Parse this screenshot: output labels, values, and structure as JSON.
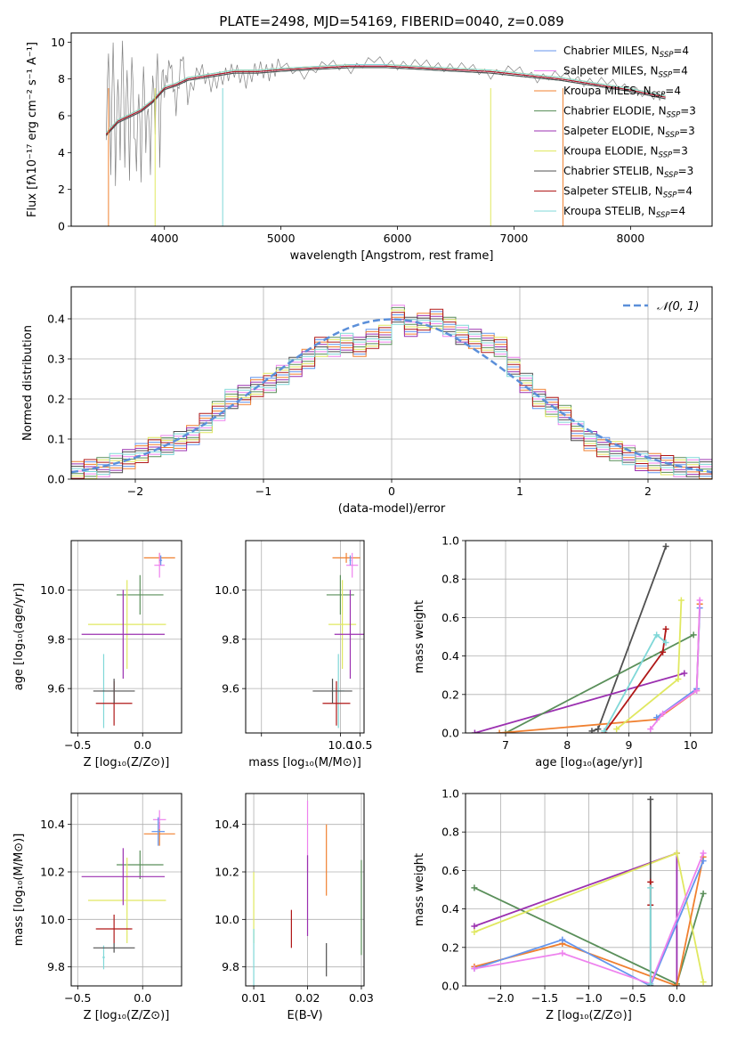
{
  "figure": {
    "title": "PLATE=2498, MJD=54169, FIBERID=0040, z=0.089"
  },
  "chart_data": [
    {
      "id": "spectrum",
      "type": "line",
      "xlabel": "wavelength [Angstrom, rest frame]",
      "ylabel": "Flux [fλ10⁻¹⁷ erg cm⁻² s⁻¹ A⁻¹]",
      "xlim": [
        3200,
        8700
      ],
      "ylim": [
        0,
        10.5
      ],
      "xticks": [
        4000,
        5000,
        6000,
        7000,
        8000
      ],
      "yticks": [
        0,
        2,
        4,
        6,
        8,
        10
      ],
      "grid": false,
      "legend_position": "top-right",
      "data_curve": {
        "color": "#808080",
        "x": [
          3500,
          3520,
          3540,
          3560,
          3580,
          3600,
          3620,
          3640,
          3660,
          3680,
          3700,
          3720,
          3740,
          3760,
          3780,
          3800,
          3820,
          3840,
          3860,
          3880,
          3900,
          3920,
          3940,
          3960,
          3980,
          4000,
          4050,
          4100,
          4150,
          4200,
          4300,
          4400,
          4500,
          4600,
          4700,
          4800,
          4900,
          5000,
          5200,
          5400,
          5600,
          5800,
          6000,
          6200,
          6400,
          6600,
          6800,
          7000,
          7200,
          7400,
          7600,
          7800,
          8000,
          8200,
          8300
        ],
        "y": [
          5.1,
          9.8,
          3.2,
          10.4,
          2.6,
          8.4,
          4.0,
          10.5,
          3.6,
          8.9,
          2.9,
          9.6,
          5.2,
          3.4,
          7.6,
          2.8,
          9.1,
          4.4,
          6.8,
          3.2,
          8.6,
          5.4,
          9.8,
          3.6,
          8.8,
          7.4,
          9.0,
          6.4,
          9.4,
          7.0,
          8.6,
          7.7,
          8.1,
          8.5,
          7.9,
          8.6,
          8.3,
          8.8,
          8.2,
          8.9,
          8.5,
          9.1,
          8.7,
          8.9,
          8.6,
          8.7,
          8.2,
          8.6,
          8.0,
          8.3,
          7.8,
          7.9,
          7.4,
          7.1,
          7.0
        ]
      },
      "model_curve": {
        "x": [
          3500,
          3600,
          3700,
          3800,
          3900,
          4000,
          4100,
          4200,
          4400,
          4600,
          4800,
          5000,
          5300,
          5600,
          5900,
          6200,
          6500,
          6800,
          7100,
          7400,
          7700,
          8000,
          8300
        ],
        "y": [
          5.0,
          5.7,
          6.0,
          6.3,
          6.8,
          7.5,
          7.7,
          8.0,
          8.2,
          8.4,
          8.4,
          8.5,
          8.6,
          8.7,
          8.7,
          8.6,
          8.5,
          8.4,
          8.2,
          8.0,
          7.7,
          7.4,
          7.0
        ]
      },
      "series": [
        {
          "name": "Chabrier MILES, N_SSP=4",
          "color": "#6495ed"
        },
        {
          "name": "Salpeter MILES, N_SSP=4",
          "color": "#ee82ee"
        },
        {
          "name": "Kroupa MILES, N_SSP=4",
          "color": "#f08030"
        },
        {
          "name": "Chabrier ELODIE, N_SSP=3",
          "color": "#5a8f5a"
        },
        {
          "name": "Salpeter ELODIE, N_SSP=3",
          "color": "#9b30b0"
        },
        {
          "name": "Kroupa ELODIE, N_SSP=3",
          "color": "#e0e860"
        },
        {
          "name": "Chabrier STELIB, N_SSP=3",
          "color": "#505050"
        },
        {
          "name": "Salpeter STELIB, N_SSP=4",
          "color": "#b01818"
        },
        {
          "name": "Kroupa STELIB, N_SSP=4",
          "color": "#80d8d8"
        }
      ],
      "legend_labels": [
        {
          "base": "Chabrier MILES, N",
          "sub": "SSP",
          "tail": "=4"
        },
        {
          "base": "Salpeter MILES, N",
          "sub": "SSP",
          "tail": "=4"
        },
        {
          "base": "Kroupa MILES, N",
          "sub": "SSP",
          "tail": "=4"
        },
        {
          "base": "Chabrier ELODIE, N",
          "sub": "SSP",
          "tail": "=3"
        },
        {
          "base": "Salpeter ELODIE, N",
          "sub": "SSP",
          "tail": "=3"
        },
        {
          "base": "Kroupa ELODIE, N",
          "sub": "SSP",
          "tail": "=3"
        },
        {
          "base": "Chabrier STELIB, N",
          "sub": "SSP",
          "tail": "=3"
        },
        {
          "base": "Salpeter STELIB, N",
          "sub": "SSP",
          "tail": "=4"
        },
        {
          "base": "Kroupa STELIB, N",
          "sub": "SSP",
          "tail": "=4"
        }
      ]
    },
    {
      "id": "residuals",
      "type": "histogram",
      "xlabel": "(data-model)/error",
      "ylabel": "Normed distribution",
      "xlim": [
        -2.5,
        2.5
      ],
      "ylim": [
        0,
        0.48
      ],
      "xticks": [
        -2,
        -1,
        0,
        1,
        2
      ],
      "yticks": [
        0.0,
        0.1,
        0.2,
        0.3,
        0.4
      ],
      "grid": true,
      "legend_position": "top-right",
      "legend_label": "𝒩(0, 1)",
      "gaussian_color": "#5b8fd9",
      "bin_width": 0.1,
      "x_bins": [
        -2.5,
        -2.4,
        -2.3,
        -2.2,
        -2.1,
        -2.0,
        -1.9,
        -1.8,
        -1.7,
        -1.6,
        -1.5,
        -1.4,
        -1.3,
        -1.2,
        -1.1,
        -1.0,
        -0.9,
        -0.8,
        -0.7,
        -0.6,
        -0.5,
        -0.4,
        -0.3,
        -0.2,
        -0.1,
        0.0,
        0.1,
        0.2,
        0.3,
        0.4,
        0.5,
        0.6,
        0.7,
        0.8,
        0.9,
        1.0,
        1.1,
        1.2,
        1.3,
        1.4,
        1.5,
        1.6,
        1.7,
        1.8,
        1.9,
        2.0,
        2.1,
        2.2,
        2.3,
        2.4
      ],
      "hist_values": [
        0.02,
        0.025,
        0.03,
        0.04,
        0.05,
        0.065,
        0.08,
        0.085,
        0.095,
        0.11,
        0.14,
        0.17,
        0.2,
        0.21,
        0.23,
        0.24,
        0.26,
        0.28,
        0.3,
        0.33,
        0.33,
        0.34,
        0.33,
        0.35,
        0.36,
        0.41,
        0.38,
        0.39,
        0.4,
        0.38,
        0.36,
        0.35,
        0.34,
        0.33,
        0.28,
        0.24,
        0.2,
        0.18,
        0.16,
        0.12,
        0.095,
        0.08,
        0.07,
        0.06,
        0.045,
        0.04,
        0.035,
        0.03,
        0.03,
        0.025
      ]
    },
    {
      "id": "z-age",
      "type": "scatter",
      "xlabel": "Z [log₁₀(Z/Z⊙)]",
      "ylabel": "age  [log₁₀(age/yr)]",
      "xlim": [
        -0.55,
        0.3
      ],
      "ylim": [
        9.42,
        10.2
      ],
      "xticks": [
        -0.5,
        0.0,
        0.5
      ],
      "yticks": [
        9.6,
        9.8,
        10.0
      ],
      "grid": true,
      "points": [
        {
          "x": 0.13,
          "y": 10.13,
          "xerr": 0.12,
          "yerr": 0.02,
          "color": "#f08030"
        },
        {
          "x": 0.13,
          "y": 10.1,
          "xerr": 0.04,
          "yerr": 0.05,
          "color": "#ee82ee"
        },
        {
          "x": 0.14,
          "y": 10.12,
          "xerr": 0.01,
          "yerr": 0.02,
          "color": "#6495ed"
        },
        {
          "x": -0.02,
          "y": 9.98,
          "xerr": 0.18,
          "yerr": 0.08,
          "color": "#5a8f5a"
        },
        {
          "x": -0.12,
          "y": 9.86,
          "xerr": 0.3,
          "yerr": 0.18,
          "color": "#e0e860"
        },
        {
          "x": -0.15,
          "y": 9.82,
          "xerr": 0.32,
          "yerr": 0.18,
          "color": "#9b30b0"
        },
        {
          "x": -0.3,
          "y": 9.59,
          "xerr": 0.01,
          "yerr": 0.15,
          "color": "#80d8d8"
        },
        {
          "x": -0.22,
          "y": 9.54,
          "xerr": 0.14,
          "yerr": 0.09,
          "color": "#b01818"
        },
        {
          "x": -0.22,
          "y": 9.59,
          "xerr": 0.16,
          "yerr": 0.05,
          "color": "#505050"
        }
      ]
    },
    {
      "id": "mass-age",
      "type": "scatter",
      "xlabel": "mass [log₁₀(M/M⊙)]",
      "ylabel": "",
      "xlim": [
        7.6,
        10.6
      ],
      "ylim": [
        9.42,
        10.2
      ],
      "xticks": [
        8.0,
        10.0,
        10.5
      ],
      "tick_labels": [
        "",
        "10.0",
        "10.5"
      ],
      "yticks": [
        9.6,
        9.8,
        10.0
      ],
      "grid": true,
      "points": [
        {
          "x": 10.15,
          "y": 10.13,
          "xerr": 0.35,
          "yerr": 0.02,
          "color": "#f08030"
        },
        {
          "x": 10.3,
          "y": 10.1,
          "xerr": 0.15,
          "yerr": 0.05,
          "color": "#ee82ee"
        },
        {
          "x": 10.25,
          "y": 10.12,
          "xerr": 0.02,
          "yerr": 0.02,
          "color": "#6495ed"
        },
        {
          "x": 10.0,
          "y": 9.98,
          "xerr": 0.35,
          "yerr": 0.08,
          "color": "#5a8f5a"
        },
        {
          "x": 10.05,
          "y": 9.86,
          "xerr": 0.35,
          "yerr": 0.18,
          "color": "#e0e860"
        },
        {
          "x": 10.25,
          "y": 9.82,
          "xerr": 0.4,
          "yerr": 0.18,
          "color": "#9b30b0"
        },
        {
          "x": 9.95,
          "y": 9.59,
          "xerr": 0.15,
          "yerr": 0.15,
          "color": "#80d8d8"
        },
        {
          "x": 9.9,
          "y": 9.54,
          "xerr": 0.35,
          "yerr": 0.09,
          "color": "#b01818"
        },
        {
          "x": 9.8,
          "y": 9.59,
          "xerr": 0.5,
          "yerr": 0.05,
          "color": "#505050"
        }
      ]
    },
    {
      "id": "age-weight",
      "type": "line",
      "xlabel": "age  [log₁₀(age/yr)]",
      "ylabel": "mass weight",
      "xlim": [
        6.35,
        10.35
      ],
      "ylim": [
        0,
        1
      ],
      "xticks": [
        7,
        8,
        9,
        10
      ],
      "yticks": [
        0.0,
        0.2,
        0.4,
        0.6,
        0.8,
        1.0
      ],
      "grid": true,
      "series": [
        {
          "color": "#505050",
          "x": [
            8.4,
            8.5,
            9.6
          ],
          "y": [
            0.01,
            0.02,
            0.97
          ]
        },
        {
          "color": "#9b30b0",
          "x": [
            6.5,
            9.9
          ],
          "y": [
            0.0,
            0.31
          ]
        },
        {
          "color": "#5a8f5a",
          "x": [
            7.0,
            10.05
          ],
          "y": [
            0.0,
            0.51
          ]
        },
        {
          "color": "#f08030",
          "x": [
            6.9,
            9.45,
            10.1,
            10.15
          ],
          "y": [
            0.0,
            0.07,
            0.22,
            0.67
          ]
        },
        {
          "color": "#6495ed",
          "x": [
            9.45,
            10.1,
            10.15
          ],
          "y": [
            0.08,
            0.23,
            0.65
          ]
        },
        {
          "color": "#ee82ee",
          "x": [
            9.35,
            9.55,
            10.1,
            10.15
          ],
          "y": [
            0.02,
            0.1,
            0.22,
            0.69
          ]
        },
        {
          "color": "#e0e860",
          "x": [
            8.8,
            9.8,
            9.85
          ],
          "y": [
            0.02,
            0.28,
            0.69
          ]
        },
        {
          "color": "#b01818",
          "x": [
            8.6,
            9.55,
            9.6
          ],
          "y": [
            0.0,
            0.42,
            0.54
          ]
        },
        {
          "color": "#80d8d8",
          "x": [
            8.6,
            9.45,
            9.6
          ],
          "y": [
            0.01,
            0.51,
            0.47
          ]
        }
      ]
    },
    {
      "id": "z-mass",
      "type": "scatter",
      "xlabel": "Z [log₁₀(Z/Z⊙)]",
      "ylabel": "mass [log₁₀(M/M⊙)]",
      "xlim": [
        -0.55,
        0.3
      ],
      "ylim": [
        9.72,
        10.53
      ],
      "xticks": [
        -0.5,
        0.0,
        0.5
      ],
      "yticks": [
        9.8,
        10.0,
        10.2,
        10.4
      ],
      "grid": true,
      "points": [
        {
          "x": 0.13,
          "y": 10.36,
          "xerr": 0.12,
          "yerr": 0.05,
          "color": "#f08030"
        },
        {
          "x": 0.13,
          "y": 10.42,
          "xerr": 0.05,
          "yerr": 0.04,
          "color": "#ee82ee"
        },
        {
          "x": 0.12,
          "y": 10.37,
          "xerr": 0.05,
          "yerr": 0.06,
          "color": "#6495ed"
        },
        {
          "x": -0.02,
          "y": 10.23,
          "xerr": 0.18,
          "yerr": 0.06,
          "color": "#5a8f5a"
        },
        {
          "x": -0.12,
          "y": 10.08,
          "xerr": 0.3,
          "yerr": 0.18,
          "color": "#e0e860"
        },
        {
          "x": -0.15,
          "y": 10.18,
          "xerr": 0.32,
          "yerr": 0.12,
          "color": "#9b30b0"
        },
        {
          "x": -0.3,
          "y": 9.84,
          "xerr": 0.01,
          "yerr": 0.05,
          "color": "#80d8d8"
        },
        {
          "x": -0.22,
          "y": 9.96,
          "xerr": 0.14,
          "yerr": 0.06,
          "color": "#b01818"
        },
        {
          "x": -0.22,
          "y": 9.88,
          "xerr": 0.16,
          "yerr": 0.02,
          "color": "#505050"
        }
      ]
    },
    {
      "id": "ebv-mass",
      "type": "scatter",
      "xlabel": "E(B-V)",
      "ylabel": "",
      "xlim": [
        0.0085,
        0.0305
      ],
      "ylim": [
        9.72,
        10.53
      ],
      "xticks": [
        0.01,
        0.02,
        0.03
      ],
      "yticks": [
        9.8,
        10.0,
        10.2,
        10.4
      ],
      "grid": true,
      "points": [
        {
          "x": 0.0235,
          "y": 10.25,
          "yerr": 0.15,
          "color": "#f08030"
        },
        {
          "x": 0.02,
          "y": 10.35,
          "yerr": 0.15,
          "color": "#ee82ee"
        },
        {
          "x": 0.01,
          "y": 10.05,
          "yerr": 0.15,
          "color": "#e0e860"
        },
        {
          "x": 0.02,
          "y": 10.1,
          "yerr": 0.17,
          "color": "#9b30b0"
        },
        {
          "x": 0.03,
          "y": 10.05,
          "yerr": 0.2,
          "color": "#5a8f5a"
        },
        {
          "x": 0.01,
          "y": 9.84,
          "yerr": 0.12,
          "color": "#80d8d8"
        },
        {
          "x": 0.017,
          "y": 9.96,
          "yerr": 0.08,
          "color": "#b01818"
        },
        {
          "x": 0.0235,
          "y": 9.83,
          "yerr": 0.07,
          "color": "#505050"
        }
      ]
    },
    {
      "id": "z-weight",
      "type": "line",
      "xlabel": "Z [log₁₀(Z/Z⊙)]",
      "ylabel": "mass weight",
      "xlim": [
        -2.4,
        0.4
      ],
      "ylim": [
        0,
        1
      ],
      "xticks": [
        -2.0,
        -1.5,
        -1.0,
        -0.5,
        0.0
      ],
      "yticks": [
        0.0,
        0.2,
        0.4,
        0.6,
        0.8,
        1.0
      ],
      "grid": true,
      "series": [
        {
          "color": "#5a8f5a",
          "x": [
            -2.3,
            0.0,
            0.3
          ],
          "y": [
            0.51,
            0.01,
            0.48
          ]
        },
        {
          "color": "#9b30b0",
          "x": [
            -2.3,
            0.0,
            0.0
          ],
          "y": [
            0.31,
            0.69,
            0.0
          ]
        },
        {
          "color": "#e0e860",
          "x": [
            -2.3,
            0.0,
            0.3
          ],
          "y": [
            0.28,
            0.69,
            0.02
          ]
        },
        {
          "color": "#f08030",
          "x": [
            -2.3,
            -1.3,
            0.0,
            0.3
          ],
          "y": [
            0.1,
            0.22,
            0.0,
            0.67
          ]
        },
        {
          "color": "#6495ed",
          "x": [
            -2.3,
            -1.3,
            -0.3,
            0.3
          ],
          "y": [
            0.09,
            0.24,
            0.0,
            0.65
          ]
        },
        {
          "color": "#ee82ee",
          "x": [
            -2.3,
            -1.3,
            -0.3,
            0.3
          ],
          "y": [
            0.09,
            0.17,
            0.01,
            0.69
          ]
        },
        {
          "color": "#505050",
          "x": [
            -0.3,
            -0.3
          ],
          "y": [
            0.0,
            0.97
          ]
        },
        {
          "color": "#b01818",
          "x": [
            -0.3,
            -0.3
          ],
          "y": [
            0.42,
            0.54
          ]
        },
        {
          "color": "#80d8d8",
          "x": [
            -0.3,
            -0.3
          ],
          "y": [
            0.01,
            0.51
          ]
        }
      ]
    }
  ]
}
